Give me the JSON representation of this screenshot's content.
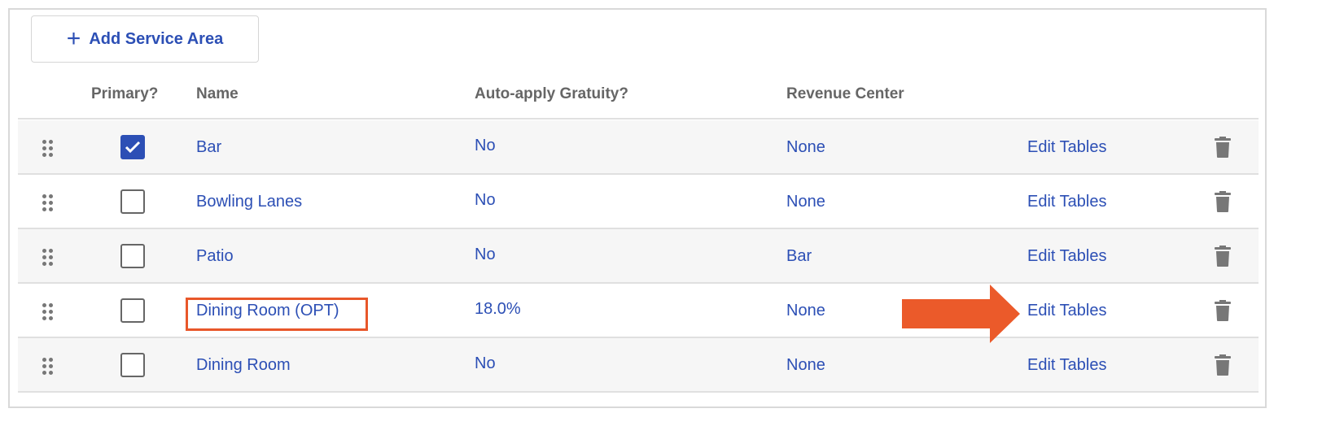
{
  "toolbar": {
    "add_label": "Add Service Area",
    "add_icon": "plus-icon"
  },
  "columns": {
    "primary": "Primary?",
    "name": "Name",
    "gratuity": "Auto-apply Gratuity?",
    "revenue": "Revenue Center"
  },
  "rows": [
    {
      "primary": true,
      "name": "Bar",
      "gratuity": "No",
      "revenue": "None",
      "action": "Edit Tables"
    },
    {
      "primary": false,
      "name": "Bowling Lanes",
      "gratuity": "No",
      "revenue": "None",
      "action": "Edit Tables"
    },
    {
      "primary": false,
      "name": "Patio",
      "gratuity": "No",
      "revenue": "Bar",
      "action": "Edit Tables"
    },
    {
      "primary": false,
      "name": "Dining Room (OPT)",
      "gratuity": "18.0%",
      "revenue": "None",
      "action": "Edit Tables"
    },
    {
      "primary": false,
      "name": "Dining Room",
      "gratuity": "No",
      "revenue": "None",
      "action": "Edit Tables"
    }
  ],
  "annotation": {
    "highlight_color": "#e8572a",
    "arrow_color": "#eb5a2a",
    "highlighted_row": "Dining Room (OPT)"
  },
  "colors": {
    "link": "#2c4fb5",
    "header": "#666666"
  }
}
